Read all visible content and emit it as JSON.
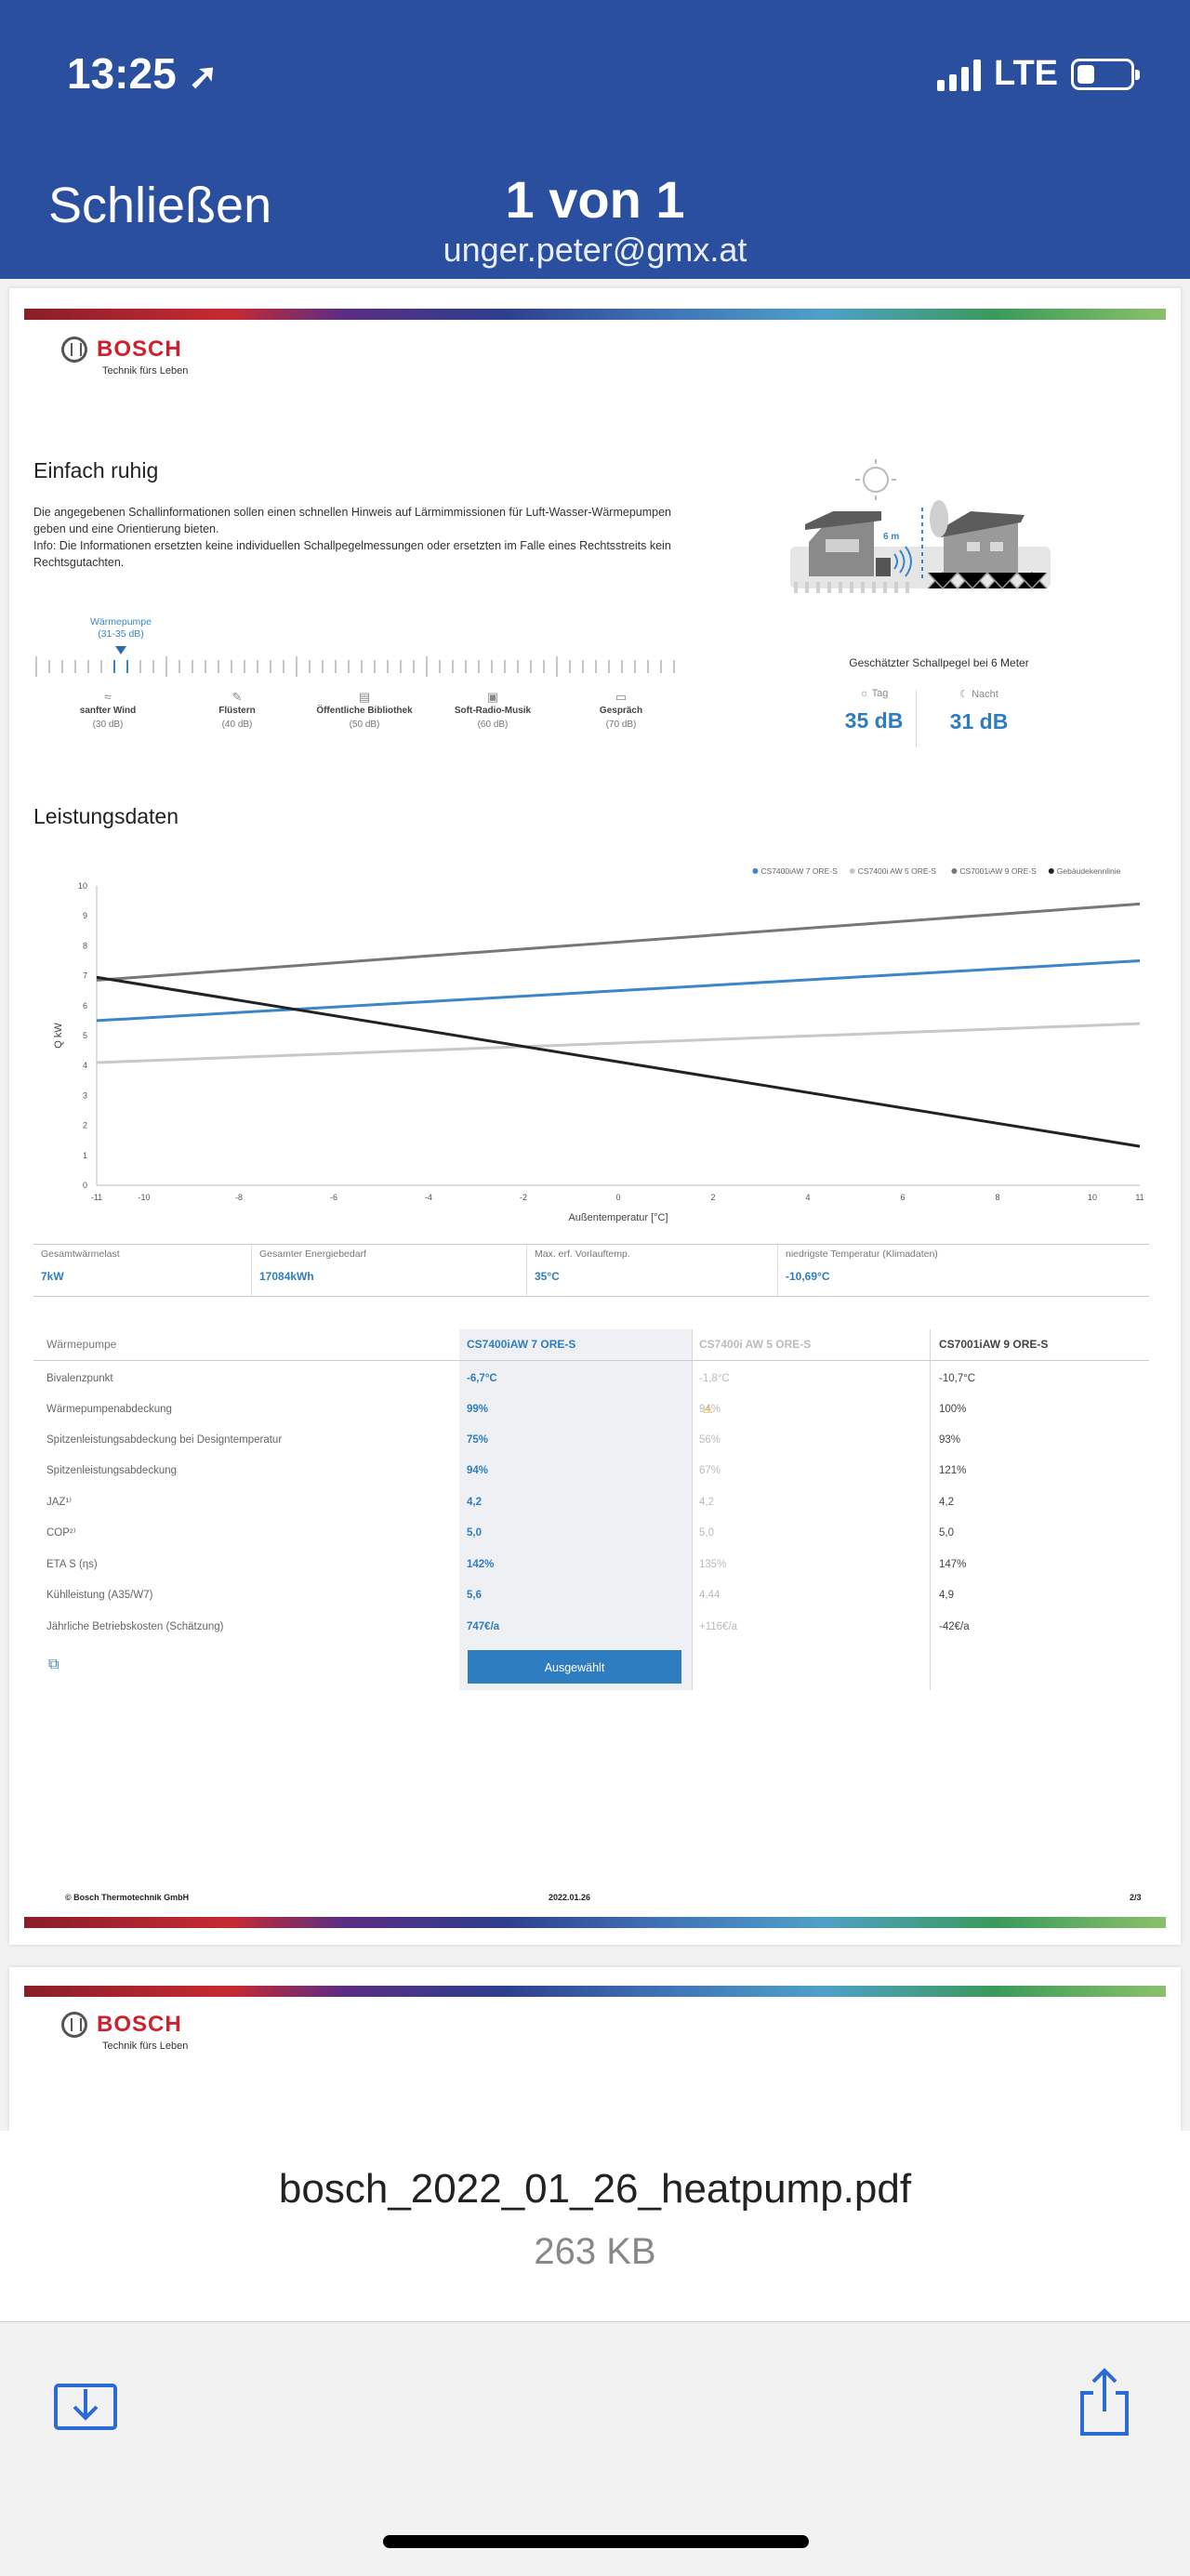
{
  "status_bar": {
    "time": "13:25",
    "network": "LTE"
  },
  "header": {
    "close_label": "Schließen",
    "title": "1 von 1",
    "subtitle": "unger.peter@gmx.at"
  },
  "logo": {
    "name": "BOSCH",
    "tagline": "Technik fürs Leben"
  },
  "noise_section": {
    "title": "Einfach ruhig",
    "intro_1": "Die angegebenen Schallinformationen sollen einen schnellen Hinweis auf Lärmimmissionen für Luft-Wasser-Wärmepumpen geben und eine Orientierung bieten.",
    "intro_2": "Info: Die Informationen ersetzten keine individuellen Schallpegelmessungen oder ersetzten im Falle eines Rechtsstreits kein Rechtsgutachten.",
    "pump_label": "Wärmepumpe",
    "pump_range": "(31-35 dB)",
    "scale_items": [
      {
        "icon": "wind-icon",
        "label": "sanfter Wind",
        "value": "(30 dB)"
      },
      {
        "icon": "whisper-icon",
        "label": "Flüstern",
        "value": "(40 dB)"
      },
      {
        "icon": "library-icon",
        "label": "Öffentliche Bibliothek",
        "value": "(50 dB)"
      },
      {
        "icon": "radio-icon",
        "label": "Soft-Radio-Musik",
        "value": "(60 dB)"
      },
      {
        "icon": "conversation-icon",
        "label": "Gespräch",
        "value": "(70 dB)"
      }
    ],
    "distance_label": "6 m",
    "estimate_caption": "Geschätzter Schallpegel bei 6 Meter",
    "day_label": "Tag",
    "day_value": "35 dB",
    "night_label": "Nacht",
    "night_value": "31 dB"
  },
  "performance": {
    "title": "Leistungsdaten",
    "kpis": [
      {
        "label": "Gesamtwärmelast",
        "value": "7kW"
      },
      {
        "label": "Gesamter Energiebedarf",
        "value": "17084kWh"
      },
      {
        "label": "Max. erf. Vorlauftemp.",
        "value": "35°C"
      },
      {
        "label": "niedrigste Temperatur (Klimadaten)",
        "value": "-10,69°C"
      }
    ]
  },
  "chart_data": {
    "type": "line",
    "title": "",
    "xlabel": "Außentemperatur [°C]",
    "ylabel": "Q kW",
    "xlim": [
      -11,
      11
    ],
    "ylim": [
      0,
      10
    ],
    "x_ticks": [
      -11,
      -10,
      -8,
      -6,
      -4,
      -2,
      0,
      2,
      4,
      6,
      8,
      10,
      11
    ],
    "y_ticks": [
      0,
      1,
      2,
      3,
      4,
      5,
      6,
      7,
      8,
      9,
      10
    ],
    "grid": false,
    "legend_position": "top-right",
    "series": [
      {
        "name": "CS7400iAW 7 ORE-S",
        "color": "#3a86c8",
        "x": [
          -11,
          11
        ],
        "y": [
          5.5,
          7.5
        ]
      },
      {
        "name": "CS7400i AW 5 ORE-S",
        "color": "#c8c8c8",
        "x": [
          -11,
          11
        ],
        "y": [
          4.1,
          5.4
        ]
      },
      {
        "name": "CS7001iAW 9 ORE-S",
        "color": "#777777",
        "x": [
          -11,
          11
        ],
        "y": [
          6.85,
          9.4
        ]
      },
      {
        "name": "Gebäudekennlinie",
        "color": "#222222",
        "x": [
          -11,
          11
        ],
        "y": [
          6.95,
          1.3
        ]
      }
    ]
  },
  "comparison": {
    "row_header": "Wärmepumpe",
    "columns": [
      "CS7400iAW 7 ORE-S",
      "CS7400i AW 5 ORE-S",
      "CS7001iAW 9 ORE-S"
    ],
    "rows": [
      {
        "label": "Bivalenzpunkt",
        "v1": "-6,7°C",
        "v2": "-1,8°C",
        "v3": "-10,7°C"
      },
      {
        "label": "Wärmepumpenabdeckung",
        "v1": "99%",
        "v2": "94%",
        "v3": "100%",
        "warn": "⚠"
      },
      {
        "label": "Spitzenleistungsabdeckung bei Designtemperatur",
        "v1": "75%",
        "v2": "56%",
        "v3": "93%"
      },
      {
        "label": "Spitzenleistungsabdeckung",
        "v1": "94%",
        "v2": "67%",
        "v3": "121%"
      },
      {
        "label": "JAZ¹⁾",
        "v1": "4,2",
        "v2": "4,2",
        "v3": "4,2"
      },
      {
        "label": "COP²⁾",
        "v1": "5,0",
        "v2": "5,0",
        "v3": "5,0"
      },
      {
        "label": "ETA S (ηs)",
        "v1": "142%",
        "v2": "135%",
        "v3": "147%"
      },
      {
        "label": "Kühlleistung (A35/W7)",
        "v1": "5,6",
        "v2": "4,44",
        "v3": "4,9"
      },
      {
        "label": "Jährliche Betriebskosten (Schätzung)",
        "v1": "747€/a",
        "v2": "+116€/a",
        "v3": "-42€/a"
      }
    ],
    "selected_label": "Ausgewählt"
  },
  "footer": {
    "copyright": "© Bosch Thermotechnik GmbH",
    "date": "2022.01.26",
    "page": "2/3"
  },
  "file": {
    "name": "bosch_2022_01_26_heatpump.pdf",
    "size": "263 KB"
  },
  "colors": {
    "header_bg": "#2a4f9e",
    "accent": "#2f7dc1",
    "bosch_red": "#d0202f"
  }
}
